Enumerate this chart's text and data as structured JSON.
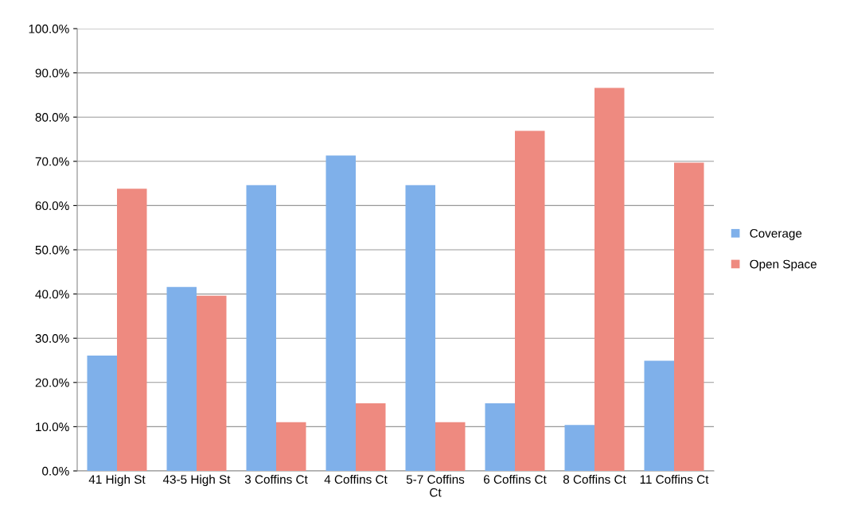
{
  "chart_data": {
    "type": "bar",
    "categories": [
      "41 High St",
      "43-5 High St",
      "3 Coffins Ct",
      "4 Coffins Ct",
      "5-7 Coffins Ct",
      "6 Coffins Ct",
      "8 Coffins Ct",
      "11 Coffins Ct"
    ],
    "series": [
      {
        "name": "Coverage",
        "color": "#7fb0ea",
        "values": [
          26.1,
          41.6,
          64.6,
          71.3,
          64.6,
          15.3,
          10.4,
          24.9
        ]
      },
      {
        "name": "Open Space",
        "color": "#ee8a80",
        "values": [
          63.8,
          39.6,
          11.0,
          15.3,
          11.0,
          76.9,
          86.6,
          69.7
        ]
      }
    ],
    "ylim": [
      0,
      100
    ],
    "yticks": [
      {
        "value": 0,
        "label": "0.0%"
      },
      {
        "value": 10,
        "label": "10.0%"
      },
      {
        "value": 20,
        "label": "20.0%"
      },
      {
        "value": 30,
        "label": "30.0%"
      },
      {
        "value": 40,
        "label": "40.0%"
      },
      {
        "value": 50,
        "label": "50.0%"
      },
      {
        "value": 60,
        "label": "60.0%"
      },
      {
        "value": 70,
        "label": "70.0%"
      },
      {
        "value": 80,
        "label": "80.0%"
      },
      {
        "value": 90,
        "label": "90.0%"
      },
      {
        "value": 100,
        "label": "100.0%"
      }
    ],
    "grid": "y",
    "legend": "right"
  }
}
